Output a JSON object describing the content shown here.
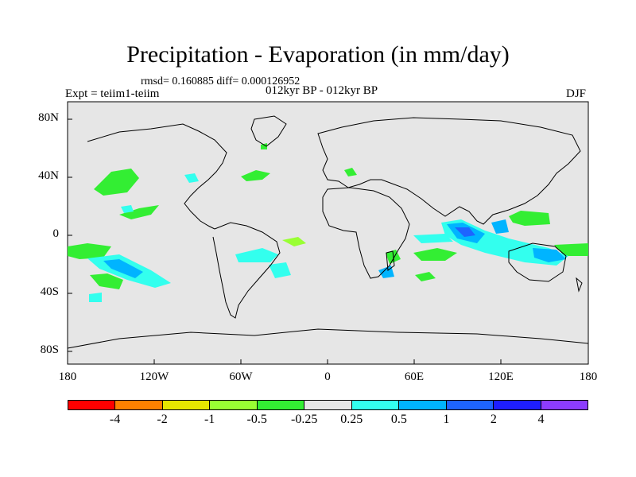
{
  "title": "Precipitation - Evaporation (in mm/day)",
  "stats": "rmsd= 0.160885 diff= 0.000126952",
  "experiment": "Expt = teiim1-teiim",
  "period": "012kyr BP - 012kyr BP",
  "season": "DJF",
  "lat_labels": [
    "80N",
    "40N",
    "0",
    "40S",
    "80S"
  ],
  "lon_labels": [
    "180",
    "120W",
    "60W",
    "0",
    "60E",
    "120E",
    "180"
  ],
  "colorbar": {
    "labels": [
      "-4",
      "-2",
      "-1",
      "-0.5",
      "-0.25",
      "0.25",
      "0.5",
      "1",
      "2",
      "4"
    ],
    "colors": [
      "#ff0000",
      "#ff8000",
      "#e6e600",
      "#99ff33",
      "#33ee33",
      "#e6e6e6",
      "#33ffee",
      "#00b4ff",
      "#1e64ff",
      "#1e1eff",
      "#8c3cff"
    ]
  },
  "map_colors": {
    "ocean": "#e6e6e6",
    "coast": "#000000"
  }
}
